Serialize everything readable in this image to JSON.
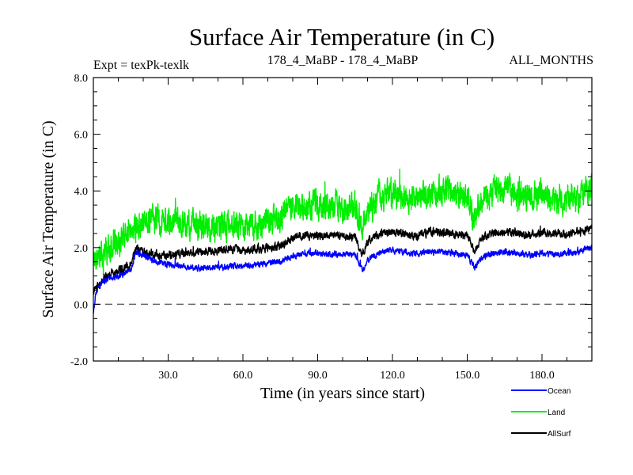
{
  "chart_data": {
    "type": "line",
    "title": "Surface Air Temperature (in C)",
    "subtitle_left": "Expt = texPk-texlk",
    "subtitle_center": "178_4_MaBP - 178_4_MaBP",
    "subtitle_right": "ALL_MONTHS",
    "xlabel": "Time (in years since start)",
    "ylabel": "Surface Air Temperature (in C)",
    "xlim": [
      0,
      200
    ],
    "ylim": [
      -2,
      8
    ],
    "xticks": [
      30,
      60,
      90,
      120,
      150,
      180
    ],
    "xtick_labels": [
      "30.0",
      "60.0",
      "90.0",
      "120.0",
      "150.0",
      "180.0"
    ],
    "yticks": [
      -2,
      0,
      2,
      4,
      6,
      8
    ],
    "ytick_labels": [
      "-2.0",
      "0.0",
      "2.0",
      "4.0",
      "6.0",
      "8.0"
    ],
    "reference_line": {
      "y": 0,
      "style": "dashed"
    },
    "legend_position": "bottom-right",
    "series": [
      {
        "name": "Land",
        "color": "#00ee00",
        "x": [
          0,
          5,
          10,
          15,
          20,
          25,
          30,
          35,
          40,
          45,
          50,
          55,
          60,
          65,
          70,
          75,
          80,
          85,
          90,
          95,
          100,
          105,
          108,
          110,
          115,
          120,
          125,
          130,
          135,
          140,
          145,
          150,
          153,
          155,
          160,
          165,
          170,
          175,
          180,
          185,
          190,
          195,
          200
        ],
        "values": [
          1.6,
          1.9,
          2.2,
          2.6,
          2.9,
          3.0,
          2.9,
          2.9,
          2.8,
          2.7,
          2.7,
          2.8,
          2.8,
          2.8,
          2.9,
          3.0,
          3.4,
          3.5,
          3.5,
          3.5,
          3.4,
          3.5,
          2.7,
          3.3,
          3.8,
          3.9,
          3.8,
          3.7,
          3.9,
          4.0,
          3.9,
          3.8,
          2.9,
          3.6,
          4.0,
          4.1,
          3.9,
          3.8,
          3.9,
          3.7,
          3.7,
          3.8,
          4.2
        ],
        "noise_amplitude": 0.75
      },
      {
        "name": "AllSurf",
        "color": "#000000",
        "x": [
          0,
          5,
          10,
          15,
          17,
          20,
          25,
          30,
          35,
          40,
          45,
          50,
          55,
          60,
          65,
          70,
          75,
          80,
          85,
          90,
          95,
          100,
          105,
          108,
          110,
          115,
          120,
          125,
          130,
          135,
          140,
          145,
          150,
          153,
          155,
          160,
          165,
          170,
          175,
          180,
          185,
          190,
          195,
          200
        ],
        "values": [
          0.5,
          1.0,
          1.2,
          1.4,
          1.95,
          1.85,
          1.75,
          1.7,
          1.8,
          1.85,
          1.85,
          1.9,
          1.95,
          1.9,
          1.95,
          2.0,
          2.05,
          2.35,
          2.45,
          2.4,
          2.45,
          2.4,
          2.35,
          1.75,
          2.2,
          2.5,
          2.55,
          2.5,
          2.4,
          2.55,
          2.55,
          2.5,
          2.45,
          1.85,
          2.3,
          2.5,
          2.55,
          2.5,
          2.45,
          2.5,
          2.5,
          2.5,
          2.55,
          2.7
        ],
        "noise_amplitude": 0.22
      },
      {
        "name": "Ocean",
        "color": "#0000ff",
        "x": [
          0,
          1,
          3,
          5,
          10,
          15,
          17,
          20,
          25,
          30,
          35,
          40,
          45,
          50,
          55,
          60,
          65,
          70,
          75,
          80,
          85,
          90,
          95,
          100,
          105,
          108,
          110,
          115,
          120,
          125,
          130,
          135,
          140,
          145,
          150,
          153,
          155,
          160,
          165,
          170,
          175,
          180,
          185,
          190,
          195,
          200
        ],
        "values": [
          -0.3,
          0.4,
          0.7,
          0.85,
          1.0,
          1.2,
          1.85,
          1.7,
          1.5,
          1.4,
          1.35,
          1.3,
          1.3,
          1.3,
          1.35,
          1.35,
          1.4,
          1.45,
          1.5,
          1.7,
          1.8,
          1.8,
          1.75,
          1.8,
          1.75,
          1.15,
          1.55,
          1.85,
          1.9,
          1.85,
          1.8,
          1.85,
          1.85,
          1.8,
          1.75,
          1.25,
          1.6,
          1.8,
          1.85,
          1.8,
          1.75,
          1.8,
          1.75,
          1.8,
          1.85,
          2.0
        ],
        "noise_amplitude": 0.16
      }
    ]
  }
}
